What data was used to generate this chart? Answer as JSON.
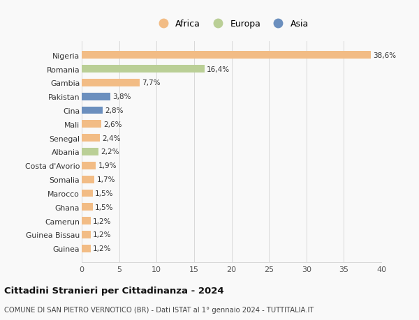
{
  "countries": [
    "Nigeria",
    "Romania",
    "Gambia",
    "Pakistan",
    "Cina",
    "Mali",
    "Senegal",
    "Albania",
    "Costa d'Avorio",
    "Somalia",
    "Marocco",
    "Ghana",
    "Camerun",
    "Guinea Bissau",
    "Guinea"
  ],
  "values": [
    38.6,
    16.4,
    7.7,
    3.8,
    2.8,
    2.6,
    2.4,
    2.2,
    1.9,
    1.7,
    1.5,
    1.5,
    1.2,
    1.2,
    1.2
  ],
  "labels": [
    "38,6%",
    "16,4%",
    "7,7%",
    "3,8%",
    "2,8%",
    "2,6%",
    "2,4%",
    "2,2%",
    "1,9%",
    "1,7%",
    "1,5%",
    "1,5%",
    "1,2%",
    "1,2%",
    "1,2%"
  ],
  "continents": [
    "Africa",
    "Europa",
    "Africa",
    "Asia",
    "Asia",
    "Africa",
    "Africa",
    "Europa",
    "Africa",
    "Africa",
    "Africa",
    "Africa",
    "Africa",
    "Africa",
    "Africa"
  ],
  "colors": {
    "Africa": "#F2BC85",
    "Europa": "#BACF96",
    "Asia": "#6B8FBE"
  },
  "legend_order": [
    "Africa",
    "Europa",
    "Asia"
  ],
  "xlim": [
    0,
    40
  ],
  "xticks": [
    0,
    5,
    10,
    15,
    20,
    25,
    30,
    35,
    40
  ],
  "title": "Cittadini Stranieri per Cittadinanza - 2024",
  "subtitle": "COMUNE DI SAN PIETRO VERNOTICO (BR) - Dati ISTAT al 1° gennaio 2024 - TUTTITALIA.IT",
  "background_color": "#f9f9f9",
  "grid_color": "#d8d8d8"
}
